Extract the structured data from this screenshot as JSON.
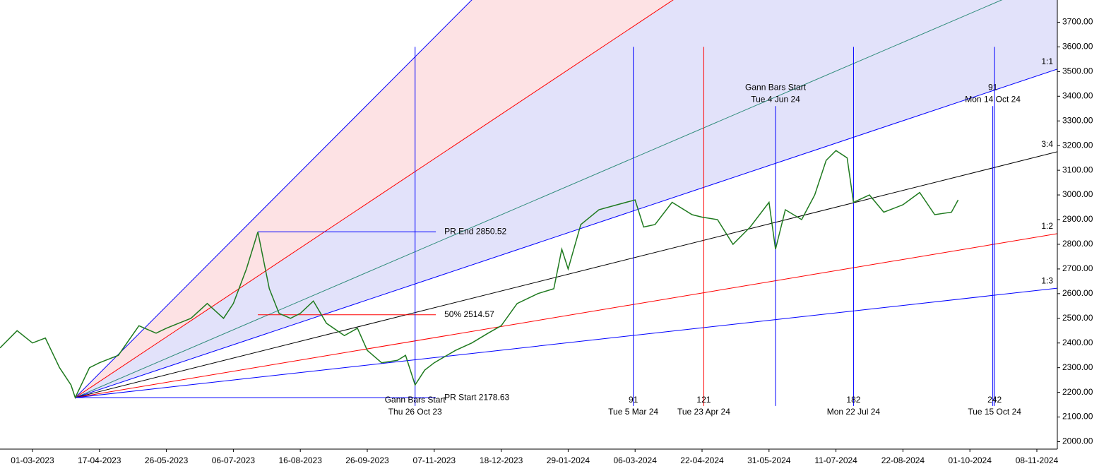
{
  "chart_data": {
    "type": "line",
    "color": "#1f7a1f",
    "x": [
      "10-02-2023",
      "20-02-2023",
      "01-03-2023",
      "10-03-2023",
      "20-03-2023",
      "28-03-2023",
      "31-03-2023",
      "10-04-2023",
      "17-04-2023",
      "28-04-2023",
      "10-05-2023",
      "20-05-2023",
      "26-05-2023",
      "10-06-2023",
      "20-06-2023",
      "30-06-2023",
      "06-07-2023",
      "14-07-2023",
      "21-07-2023",
      "28-07-2023",
      "03-08-2023",
      "10-08-2023",
      "16-08-2023",
      "24-08-2023",
      "01-09-2023",
      "12-09-2023",
      "20-09-2023",
      "26-09-2023",
      "05-10-2023",
      "15-10-2023",
      "20-10-2023",
      "26-10-2023",
      "01-11-2023",
      "07-11-2023",
      "20-11-2023",
      "30-11-2023",
      "10-12-2023",
      "18-12-2023",
      "28-12-2023",
      "10-01-2024",
      "20-01-2024",
      "25-01-2024",
      "29-01-2024",
      "05-02-2024",
      "15-02-2024",
      "25-02-2024",
      "06-03-2024",
      "12-03-2024",
      "20-03-2024",
      "01-04-2024",
      "15-04-2024",
      "22-04-2024",
      "01-05-2024",
      "10-05-2024",
      "20-05-2024",
      "31-05-2024",
      "04-06-2024",
      "10-06-2024",
      "20-06-2024",
      "28-06-2024",
      "05-07-2024",
      "11-07-2024",
      "18-07-2024",
      "22-07-2024",
      "01-08-2024",
      "10-08-2024",
      "22-08-2024",
      "01-09-2024",
      "10-09-2024",
      "20-09-2024",
      "24-09-2024"
    ],
    "values": [
      2380,
      2450,
      2400,
      2420,
      2300,
      2230,
      2178.63,
      2300,
      2320,
      2350,
      2470,
      2440,
      2460,
      2500,
      2560,
      2500,
      2560,
      2700,
      2850,
      2620,
      2520,
      2500,
      2520,
      2570,
      2480,
      2430,
      2460,
      2370,
      2320,
      2330,
      2350,
      2230,
      2290,
      2320,
      2370,
      2400,
      2440,
      2470,
      2560,
      2600,
      2620,
      2780,
      2700,
      2880,
      2940,
      2960,
      2980,
      2870,
      2880,
      2970,
      2920,
      2910,
      2900,
      2800,
      2870,
      2970,
      2780,
      2940,
      2900,
      3000,
      3140,
      3180,
      3150,
      2970,
      3000,
      2930,
      2960,
      3010,
      2920,
      2930,
      2980
    ],
    "xlim": [
      "10-02-2023",
      "20-11-2024"
    ],
    "xticks": [
      "01-03-2023",
      "17-04-2023",
      "26-05-2023",
      "06-07-2023",
      "16-08-2023",
      "26-09-2023",
      "07-11-2023",
      "18-12-2023",
      "29-01-2024",
      "06-03-2024",
      "22-04-2024",
      "31-05-2024",
      "11-07-2024",
      "22-08-2024",
      "01-10-2024",
      "08-11-2024"
    ],
    "ylim": [
      1970,
      3790
    ],
    "yticks": [
      {
        "value": 2000,
        "label": "2000.00"
      },
      {
        "value": 2100,
        "label": "2100.00"
      },
      {
        "value": 2200,
        "label": "2200.00"
      },
      {
        "value": 2300,
        "label": "2300.00"
      },
      {
        "value": 2400,
        "label": "2400.00"
      },
      {
        "value": 2500,
        "label": "2500.00"
      },
      {
        "value": 2600,
        "label": "2600.00"
      },
      {
        "value": 2700,
        "label": "2700.00"
      },
      {
        "value": 2800,
        "label": "2800.00"
      },
      {
        "value": 2900,
        "label": "2900.00"
      },
      {
        "value": 3000,
        "label": "3000.00"
      },
      {
        "value": 3100,
        "label": "3100.00"
      },
      {
        "value": 3200,
        "label": "3200.00"
      },
      {
        "value": 3300,
        "label": "3300.00"
      },
      {
        "value": 3400,
        "label": "3400.00"
      },
      {
        "value": 3500,
        "label": "3500.00"
      },
      {
        "value": 3600,
        "label": "3600.00"
      },
      {
        "value": 3700,
        "label": "3700.00"
      }
    ],
    "levels": [
      {
        "label": "PR End 2850.52",
        "value": 2850.52,
        "start": "21-07-2023",
        "color": "#0000ff"
      },
      {
        "label": "50% 2514.57",
        "value": 2514.57,
        "start": "21-07-2023",
        "color": "#ff0000"
      },
      {
        "label": "PR Start 2178.63",
        "value": 2178.63,
        "start": "31-03-2023",
        "color": "#0000ff"
      }
    ],
    "level_end": "08-11-2023",
    "gann_fan": {
      "origin": {
        "x": "31-03-2023",
        "y": 2178.63
      },
      "lines": [
        {
          "end": 6170,
          "color": "#0000ff"
        },
        {
          "end": 4826,
          "color": "#ff0000",
          "fill": "#fde2e4"
        },
        {
          "end": 3887,
          "color": "#2e8b7a",
          "fill": "#e2e2fa"
        },
        {
          "label": "1:1",
          "end": 3510,
          "color": "#0000ff",
          "fill": "#e2e2fa"
        },
        {
          "label": "3:4",
          "end": 3175,
          "color": "#000000"
        },
        {
          "label": "1:2",
          "end": 2843,
          "color": "#ff0000"
        },
        {
          "label": "1:3",
          "end": 2622,
          "color": "#0000ff"
        }
      ]
    },
    "verticals": [
      {
        "x": "26-10-2023",
        "range": [
          2145,
          3600
        ],
        "color": "#0000ff",
        "labels": [
          "Gann Bars Start",
          "Thu 26 Oct 23"
        ],
        "label_pos": "bottom"
      },
      {
        "x": "05-03-2024",
        "range": [
          2145,
          3600
        ],
        "color": "#0000ff",
        "labels": [
          "91",
          "Tue 5 Mar 24"
        ],
        "label_pos": "bottom"
      },
      {
        "x": "23-04-2024",
        "range": [
          2145,
          3600
        ],
        "color": "#ff0000",
        "labels": [
          "121",
          "Tue 23 Apr 24"
        ],
        "label_pos": "bottom"
      },
      {
        "x": "04-06-2024",
        "range": [
          2145,
          3360
        ],
        "color": "#0000ff",
        "labels": [
          "Gann Bars Start",
          "Tue 4 Jun 24"
        ],
        "label_pos": "top"
      },
      {
        "x": "22-07-2024",
        "range": [
          2145,
          3600
        ],
        "color": "#0000ff",
        "labels": [
          "182",
          "Mon 22 Jul 24"
        ],
        "label_pos": "bottom"
      },
      {
        "x": "14-10-2024",
        "range": [
          2145,
          3360
        ],
        "color": "#0000ff",
        "labels": [
          "91",
          "Mon 14 Oct 24"
        ],
        "label_pos": "top"
      },
      {
        "x": "15-10-2024",
        "range": [
          2145,
          3600
        ],
        "color": "#0000ff",
        "labels": [
          "242",
          "Tue 15 Oct 24"
        ],
        "label_pos": "bottom"
      }
    ]
  }
}
